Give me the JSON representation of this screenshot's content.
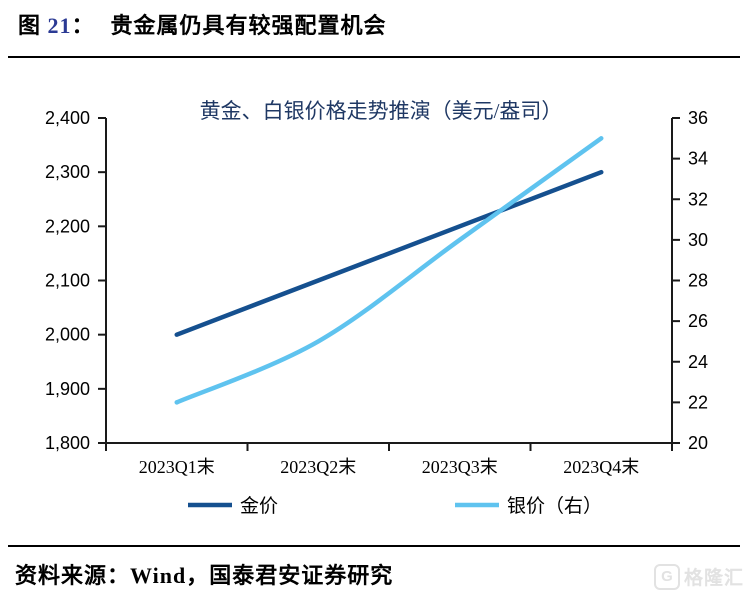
{
  "header": {
    "figure_prefix": "图 ",
    "figure_number": "21",
    "figure_colon": "：",
    "title": "贵金属仍具有较强配置机会"
  },
  "chart_data": {
    "type": "line",
    "title": "黄金、白银价格走势推演（美元/盎司）",
    "categories": [
      "2023Q1末",
      "2023Q2末",
      "2023Q3末",
      "2023Q4末"
    ],
    "series": [
      {
        "name": "金价",
        "axis": "left",
        "color": "#15508F",
        "smooth": false,
        "values": [
          2000,
          2100,
          2200,
          2300
        ]
      },
      {
        "name": "银价（右）",
        "axis": "right",
        "color": "#5FC3EF",
        "smooth": true,
        "values": [
          22,
          25,
          30,
          35
        ]
      }
    ],
    "left_axis": {
      "min": 1800,
      "max": 2400,
      "step": 100,
      "format": "comma"
    },
    "right_axis": {
      "min": 20,
      "max": 36,
      "step": 2,
      "format": "plain"
    },
    "grid": false,
    "legend_position": "bottom"
  },
  "footer": {
    "source_label": "资料来源：",
    "source_wind": "Wind",
    "source_rest": "，国泰君安证券研究"
  },
  "watermark": {
    "icon_letter": "G",
    "text": "格隆汇"
  },
  "colors": {
    "gold_line": "#15508F",
    "silver_line": "#5FC3EF",
    "chart_title_blue": "#1F3864",
    "figure_number_blue": "#2b3a94",
    "axis_black": "#1a1a1a"
  }
}
